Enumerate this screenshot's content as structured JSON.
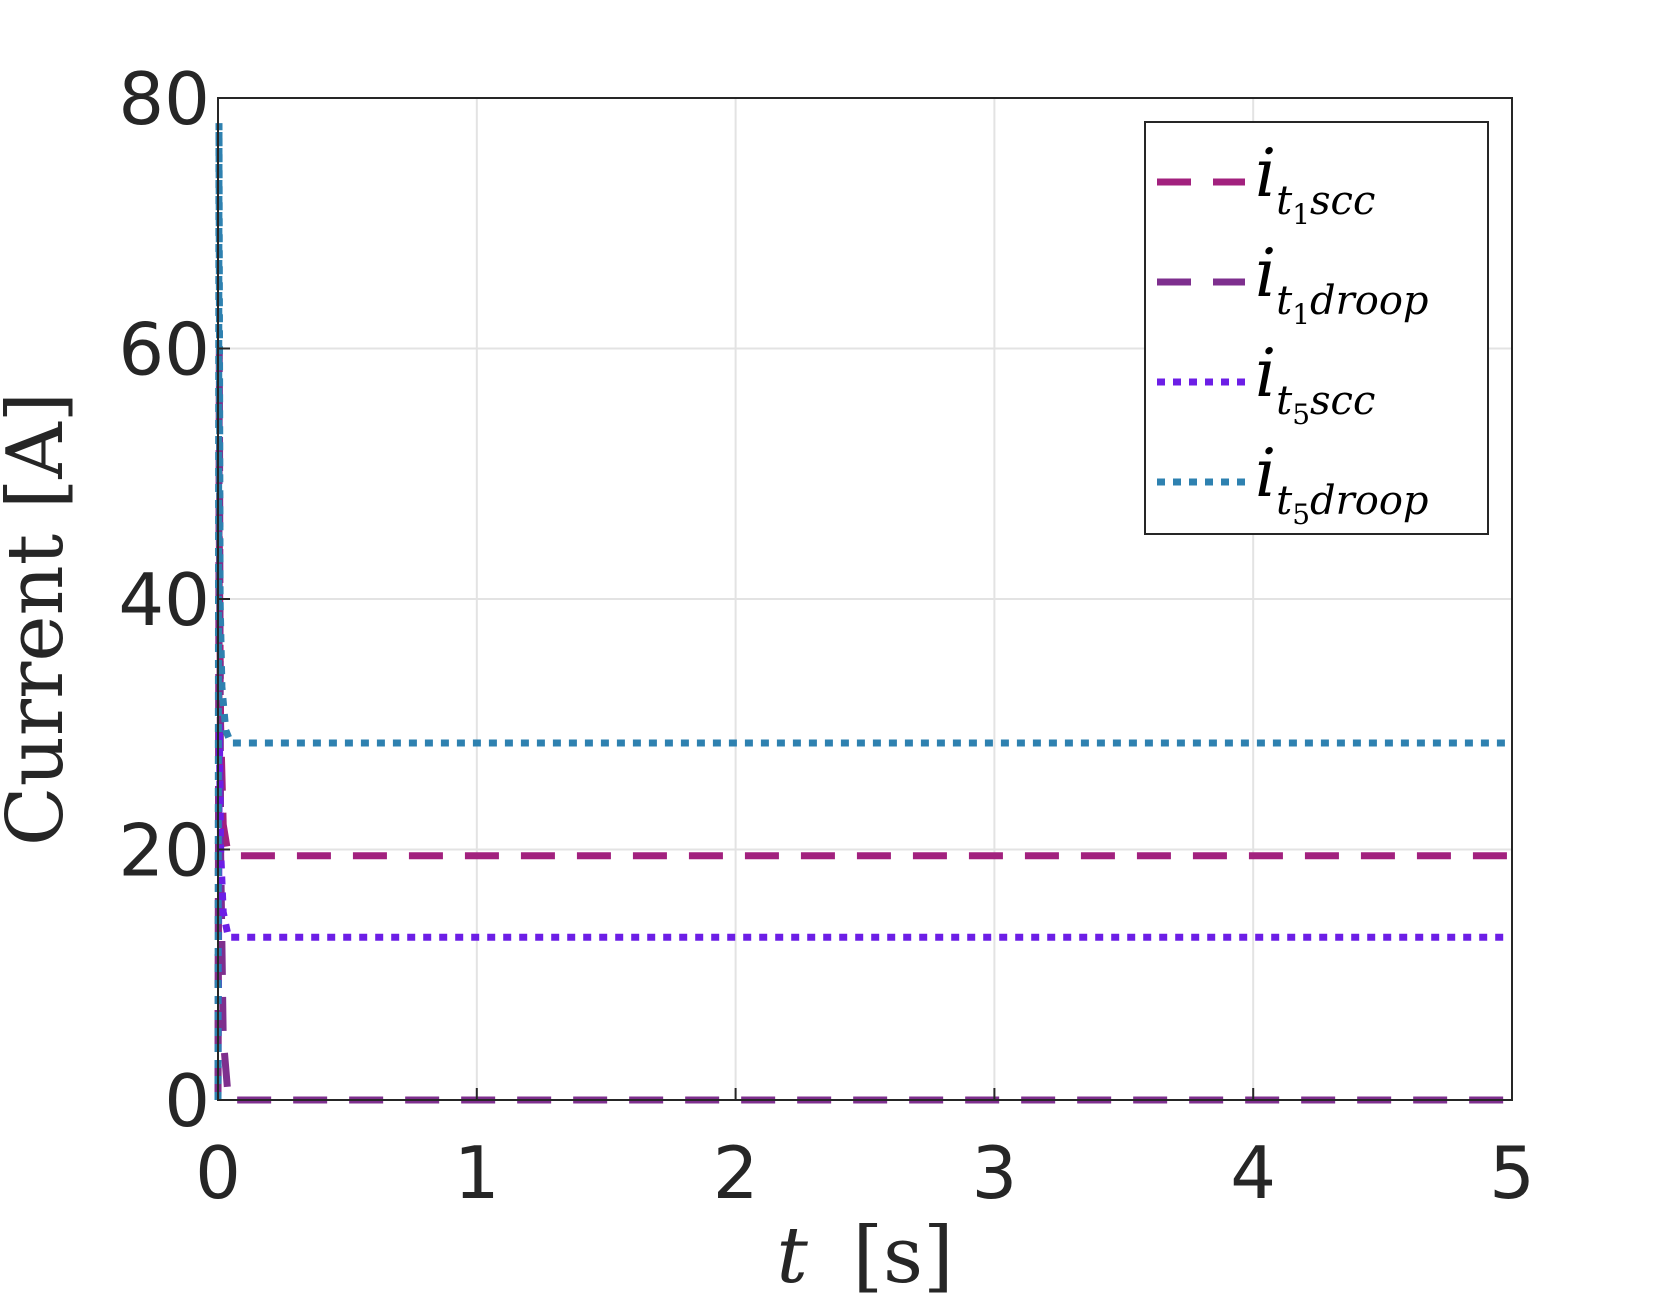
{
  "chart_data": {
    "type": "line",
    "xlabel": "t [s]",
    "xlabel_parts": {
      "var": "t",
      "unit": "[s]"
    },
    "ylabel": "Current [A]",
    "xlim": [
      0,
      5
    ],
    "ylim": [
      0,
      80
    ],
    "xticks": [
      0,
      1,
      2,
      3,
      4,
      5
    ],
    "yticks": [
      0,
      20,
      40,
      60,
      80
    ],
    "xtick_labels": [
      "0",
      "1",
      "2",
      "3",
      "4",
      "5"
    ],
    "ytick_labels": [
      "0",
      "20",
      "40",
      "60",
      "80"
    ],
    "grid": true,
    "legend_position": "top-right",
    "series": [
      {
        "name": "i_{t_1 scc}",
        "legend_main": "i",
        "legend_sub": "t",
        "legend_subsub": "1",
        "legend_tail": "scc",
        "color": "#a2217e",
        "style": "dashed",
        "x": [
          0,
          0.005,
          0.01,
          0.02,
          0.04,
          5
        ],
        "y": [
          0,
          45,
          30,
          22,
          19.5,
          19.5
        ]
      },
      {
        "name": "i_{t_1 droop}",
        "legend_main": "i",
        "legend_sub": "t",
        "legend_subsub": "1",
        "legend_tail": "droop",
        "color": "#7e2f8e",
        "style": "dashed",
        "x": [
          0,
          0.005,
          0.01,
          0.02,
          0.04,
          5
        ],
        "y": [
          0,
          60,
          20,
          5,
          0,
          0
        ]
      },
      {
        "name": "i_{t_5 scc}",
        "legend_main": "i",
        "legend_sub": "t",
        "legend_subsub": "5",
        "legend_tail": "scc",
        "color": "#6c1ee6",
        "style": "dotted",
        "x": [
          0,
          0.005,
          0.01,
          0.02,
          0.04,
          5
        ],
        "y": [
          0,
          30,
          20,
          15,
          13,
          13
        ]
      },
      {
        "name": "i_{t_5 droop}",
        "legend_main": "i",
        "legend_sub": "t",
        "legend_subsub": "5",
        "legend_tail": "droop",
        "color": "#2e81b0",
        "style": "dotted",
        "x": [
          0,
          0.004,
          0.008,
          0.015,
          0.03,
          0.05,
          5
        ],
        "y": [
          0,
          78,
          40,
          33,
          29.5,
          28.5,
          28.5
        ]
      }
    ]
  }
}
